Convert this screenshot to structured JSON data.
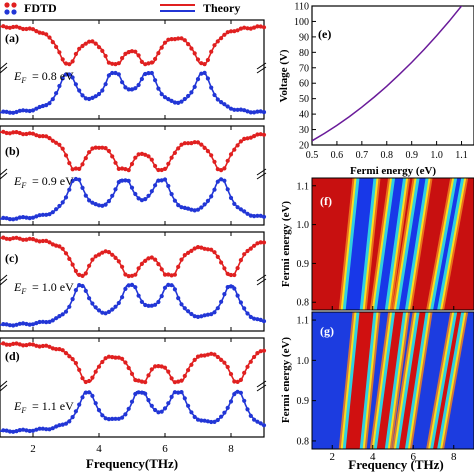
{
  "legend": {
    "fdtd_label": "FDTD",
    "theory_label": "Theory",
    "red": "#e02020",
    "blue": "#2236d6"
  },
  "chart_data": [
    {
      "panel": "(a)",
      "type": "line",
      "fermi_label": "E_F = 0.8 eV",
      "ef_value": "= 0.8 eV",
      "xlim": [
        1,
        9
      ],
      "x_ticks": [
        2,
        4,
        6,
        8
      ],
      "xlabel": "",
      "series": [
        {
          "name": "FDTD",
          "color": "#e02020",
          "dips": [
            3.05,
            4.45,
            5.5,
            7.15
          ],
          "base": 0.96,
          "depth": 0.92,
          "width": 0.35
        },
        {
          "name": "Theory",
          "color": "#2236d6",
          "peaks": [
            3.05,
            4.45,
            5.5,
            7.15
          ],
          "base": 0.04,
          "height": 0.92,
          "width": 0.32
        }
      ]
    },
    {
      "panel": "(b)",
      "type": "line",
      "fermi_label": "E_F = 0.9 eV",
      "ef_value": "= 0.9 eV",
      "xlim": [
        1,
        9
      ],
      "x_ticks": [
        2,
        4,
        6,
        8
      ],
      "xlabel": "",
      "series": [
        {
          "name": "FDTD",
          "color": "#e02020",
          "dips": [
            3.3,
            4.75,
            5.9,
            7.7
          ],
          "base": 0.96,
          "depth": 0.92,
          "width": 0.35
        },
        {
          "name": "Theory",
          "color": "#2236d6",
          "peaks": [
            3.3,
            4.75,
            5.9,
            7.7
          ],
          "base": 0.04,
          "height": 0.92,
          "width": 0.32
        }
      ]
    },
    {
      "panel": "(c)",
      "type": "line",
      "fermi_label": "E_F = 1.0 eV",
      "ef_value": "= 1.0 eV",
      "xlim": [
        1,
        9
      ],
      "x_ticks": [
        2,
        4,
        6,
        8
      ],
      "xlabel": "",
      "series": [
        {
          "name": "FDTD",
          "color": "#e02020",
          "dips": [
            3.45,
            4.95,
            6.15,
            8.0
          ],
          "base": 0.96,
          "depth": 0.92,
          "width": 0.35
        },
        {
          "name": "Theory",
          "color": "#2236d6",
          "peaks": [
            3.45,
            4.95,
            6.15,
            8.0
          ],
          "base": 0.04,
          "height": 0.92,
          "width": 0.32
        }
      ]
    },
    {
      "panel": "(d)",
      "type": "line",
      "fermi_label": "E_F = 1.1 eV",
      "ef_value": "= 1.1 eV",
      "xlim": [
        1,
        9
      ],
      "x_ticks": [
        2,
        4,
        6,
        8
      ],
      "xlabel": "Frequency(THz)",
      "series": [
        {
          "name": "FDTD",
          "color": "#e02020",
          "dips": [
            3.65,
            5.25,
            6.4,
            8.2
          ],
          "base": 0.96,
          "depth": 0.92,
          "width": 0.35
        },
        {
          "name": "Theory",
          "color": "#2236d6",
          "peaks": [
            3.65,
            5.25,
            6.4,
            8.2
          ],
          "base": 0.04,
          "height": 0.92,
          "width": 0.32
        }
      ]
    },
    {
      "panel": "(e)",
      "type": "line",
      "xlabel": "Fermi energy (eV)",
      "ylabel": "Voltage (V)",
      "xlim": [
        0.5,
        1.15
      ],
      "ylim": [
        20,
        110
      ],
      "x_ticks": [
        0.5,
        0.6,
        0.7,
        0.8,
        0.9,
        1.0,
        1.1
      ],
      "x_tick_labels": [
        "0.5",
        "0.6",
        "0.7",
        "0.8",
        "0.9",
        "1.0",
        "1.1"
      ],
      "y_ticks": [
        20,
        30,
        40,
        50,
        60,
        70,
        80,
        90,
        100,
        110
      ],
      "y_tick_labels": [
        "20",
        "30",
        "40",
        "50",
        "60",
        "70",
        "80",
        "90",
        "100",
        "110"
      ],
      "series": [
        {
          "color": "#6a1b9a",
          "x": [
            0.5,
            0.55,
            0.6,
            0.65,
            0.7,
            0.75,
            0.8,
            0.85,
            0.9,
            0.95,
            1.0,
            1.05,
            1.1,
            1.15
          ],
          "y": [
            22.7,
            27.5,
            32.7,
            38.4,
            44.5,
            51.1,
            58.1,
            65.6,
            73.5,
            81.9,
            90.8,
            100.1,
            110.0,
            120.2
          ]
        }
      ]
    },
    {
      "panel": "(f)",
      "type": "heatmap",
      "ylabel": "Fermi energy (eV)",
      "xlabel": "",
      "xlim": [
        1,
        9
      ],
      "ylim": [
        0.78,
        1.12
      ],
      "x_ticks": [
        2,
        4,
        6,
        8
      ],
      "y_ticks": [
        0.8,
        0.9,
        1.0,
        1.1
      ],
      "y_tick_labels": [
        "0.8",
        "0.9",
        "1.0",
        "1.1"
      ],
      "background": "#c81010",
      "band_color": "#1838e8",
      "band_edge": "#f8e020",
      "bands_at_ef": [
        {
          "ef": 0.8,
          "x": [
            3.05,
            4.45,
            5.5,
            7.15
          ]
        },
        {
          "ef": 1.1,
          "x": [
            3.65,
            5.25,
            6.4,
            8.2
          ]
        }
      ]
    },
    {
      "panel": "(g)",
      "type": "heatmap",
      "ylabel": "Fermi energy (eV)",
      "xlabel": "Frequency (THz)",
      "xlim": [
        1,
        9
      ],
      "ylim": [
        0.78,
        1.12
      ],
      "x_ticks": [
        2,
        4,
        6,
        8
      ],
      "x_tick_labels": [
        "2",
        "4",
        "6",
        "8"
      ],
      "y_ticks": [
        0.8,
        0.9,
        1.0,
        1.1
      ],
      "y_tick_labels": [
        "0.8",
        "0.9",
        "1.0",
        "1.1"
      ],
      "background": "#1c3ce0",
      "band_color": "#d01010",
      "band_edge": "#f8e020",
      "bands_at_ef": [
        {
          "ef": 0.8,
          "x": [
            3.05,
            4.45,
            5.5,
            7.15
          ]
        },
        {
          "ef": 1.1,
          "x": [
            3.65,
            5.25,
            6.4,
            8.2
          ]
        }
      ]
    }
  ]
}
